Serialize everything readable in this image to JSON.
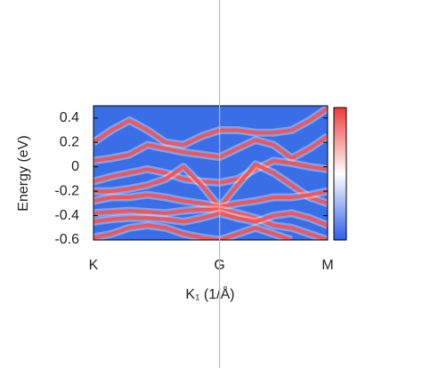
{
  "chart_data": {
    "type": "line",
    "xlabel": "K₁ (1/Å)",
    "ylabel": "Energy (eV)",
    "categories": [
      "K",
      null,
      null,
      null,
      null,
      null,
      null,
      "G",
      null,
      null,
      null,
      null,
      null,
      "M"
    ],
    "ylim": [
      -0.6,
      0.5
    ],
    "yticks": [
      -0.6,
      -0.4,
      -0.2,
      0,
      0.2,
      0.4
    ],
    "background_color": "#3a6ee6",
    "colorbar": [
      "#2f5ee8",
      "#ffffff",
      "#f03a3a"
    ],
    "series": [
      {
        "color": "#f25555",
        "values": [
          0.2,
          0.3,
          0.38,
          0.3,
          0.2,
          0.18,
          0.25,
          0.3,
          0.3,
          0.28,
          0.28,
          0.3,
          0.38,
          0.48
        ]
      },
      {
        "color": "#f25555",
        "values": [
          0.05,
          0.07,
          0.1,
          0.18,
          0.15,
          0.12,
          0.1,
          0.08,
          0.15,
          0.22,
          0.18,
          0.07,
          0.15,
          0.25
        ]
      },
      {
        "color": "#f25555",
        "values": [
          -0.12,
          -0.08,
          -0.05,
          -0.02,
          -0.05,
          -0.1,
          -0.12,
          -0.13,
          -0.1,
          -0.02,
          0.05,
          0.03,
          0.0,
          -0.02
        ]
      },
      {
        "color": "#f25555",
        "values": [
          -0.2,
          -0.2,
          -0.18,
          -0.15,
          -0.1,
          0.0,
          -0.15,
          -0.33,
          -0.15,
          0.02,
          -0.05,
          -0.15,
          -0.25,
          -0.3
        ]
      },
      {
        "color": "#f25555",
        "values": [
          -0.28,
          -0.25,
          -0.25,
          -0.23,
          -0.25,
          -0.28,
          -0.3,
          -0.33,
          -0.3,
          -0.28,
          -0.25,
          -0.25,
          -0.23,
          -0.2
        ]
      },
      {
        "color": "#f25555",
        "values": [
          -0.38,
          -0.37,
          -0.36,
          -0.37,
          -0.38,
          -0.36,
          -0.35,
          -0.35,
          -0.38,
          -0.42,
          -0.48,
          -0.5,
          -0.55,
          -0.6
        ]
      },
      {
        "color": "#f25555",
        "values": [
          -0.45,
          -0.43,
          -0.42,
          -0.42,
          -0.43,
          -0.45,
          -0.42,
          -0.38,
          -0.42,
          -0.45,
          -0.4,
          -0.38,
          -0.42,
          -0.48
        ]
      },
      {
        "color": "#f25555",
        "values": [
          -0.58,
          -0.55,
          -0.5,
          -0.48,
          -0.5,
          -0.55,
          -0.58,
          -0.6,
          -0.55,
          -0.5,
          -0.55,
          -0.6,
          null,
          null
        ]
      }
    ]
  }
}
